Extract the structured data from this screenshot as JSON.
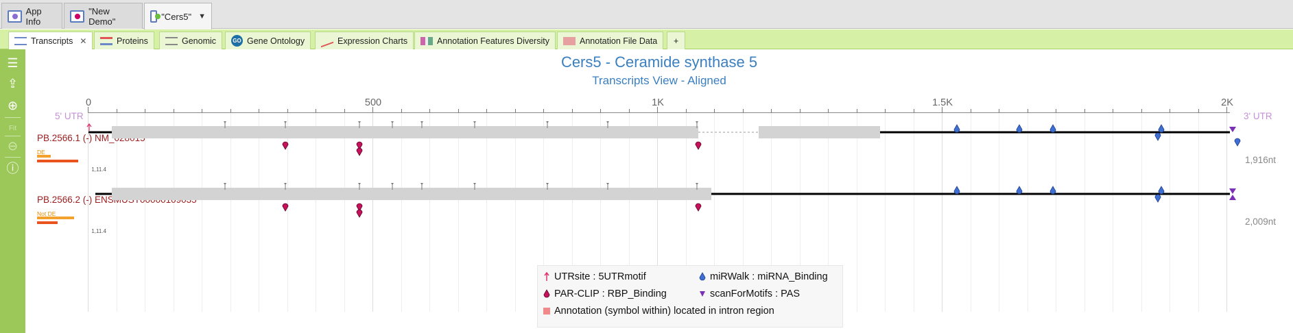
{
  "window_tabs": [
    {
      "label": "App Info",
      "active": false
    },
    {
      "label": "\"New Demo\"",
      "active": false
    },
    {
      "label": "\"Cers5\"",
      "active": true
    }
  ],
  "view_tabs": [
    {
      "label": "Transcripts",
      "active": true,
      "icon": "transcripts-icon"
    },
    {
      "label": "Proteins",
      "icon": "proteins-icon"
    },
    {
      "label": "Genomic",
      "icon": "genomic-icon"
    },
    {
      "label": "Gene Ontology",
      "icon": "gene-ontology-icon",
      "icon_text": "GO"
    },
    {
      "label": "Expression Charts",
      "icon": "expression-charts-icon"
    },
    {
      "label": "Annotation Features Diversity",
      "icon": "annotation-diversity-icon"
    },
    {
      "label": "Annotation File Data",
      "icon": "annotation-file-icon"
    },
    {
      "label": "+"
    }
  ],
  "sidebar": {
    "items": [
      "menu-icon",
      "export-icon",
      "zoom-in-icon",
      "fit-icon",
      "zoom-out-icon",
      "help-icon"
    ],
    "fit_label": "Fit"
  },
  "view": {
    "title": "Cers5 - Ceramide synthase 5",
    "subtitle": "Transcripts View - Aligned",
    "utr5": "5' UTR",
    "utr3": "3' UTR",
    "axis": {
      "ticks": [
        "0",
        "500",
        "1K",
        "1.5K",
        "2K"
      ]
    }
  },
  "transcripts": [
    {
      "name": "PB.2566.1 (-) NM_028015",
      "de_label": "DE",
      "de_value": "1,11.4",
      "length": "1,916nt"
    },
    {
      "name": "PB.2566.2 (-) ENSMUST00000109035",
      "de_label": "Not DE",
      "de_value": "1,11.4",
      "length": "2,009nt"
    }
  ],
  "legend": {
    "items": [
      {
        "label": "UTRsite : 5UTRmotif",
        "symbol": "arrow-up",
        "color": "#e0336f"
      },
      {
        "label": "miRWalk : miRNA_Binding",
        "symbol": "teardrop",
        "color": "#3f6fd1"
      },
      {
        "label": "PAR-CLIP : RBP_Binding",
        "symbol": "teardrop",
        "color": "#c8105b"
      },
      {
        "label": "scanForMotifs : PAS",
        "symbol": "triangle-down",
        "color": "#7a2fb6"
      },
      {
        "label": "Annotation (symbol within) located in intron region",
        "symbol": "square",
        "color": "#f08a8a"
      }
    ]
  },
  "colors": {
    "accent": "#3a7fc1",
    "tabstrip": "#d6f0a6",
    "sidebar": "#9cc85a",
    "transcript_name": "#9b1c1c",
    "exon": "#d3d3d3"
  }
}
